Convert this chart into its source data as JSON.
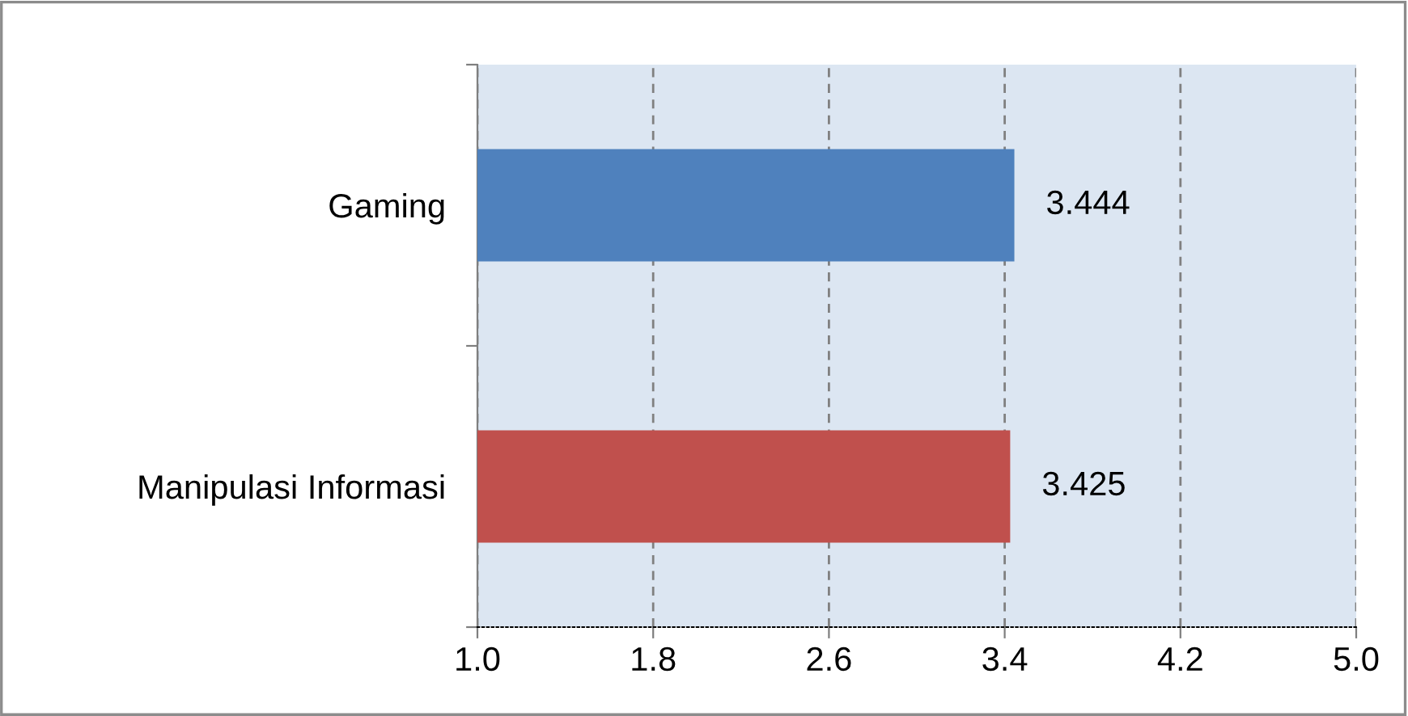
{
  "chart_data": {
    "type": "bar",
    "orientation": "horizontal",
    "categories": [
      "Gaming",
      "Manipulasi Informasi"
    ],
    "values": [
      3.444,
      3.425
    ],
    "colors": [
      "#4f81bd",
      "#c0504d"
    ],
    "xlim": [
      1.0,
      5.0
    ],
    "xticks": [
      {
        "value": 1.0,
        "label": "1.0"
      },
      {
        "value": 1.8,
        "label": "1.8"
      },
      {
        "value": 2.6,
        "label": "2.6"
      },
      {
        "value": 3.4,
        "label": "3.4"
      },
      {
        "value": 4.2,
        "label": "4.2"
      },
      {
        "value": 5.0,
        "label": "5.0"
      }
    ],
    "grid": "x",
    "data_labels": true,
    "legend": false
  }
}
